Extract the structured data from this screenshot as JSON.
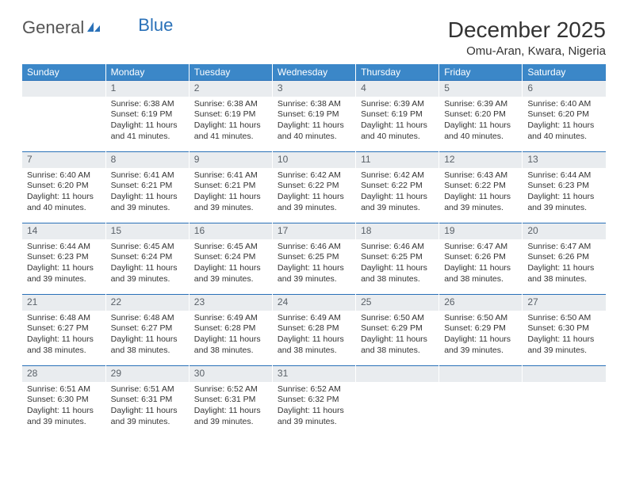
{
  "logo": {
    "text1": "General",
    "text2": "Blue"
  },
  "title": "December 2025",
  "location": "Omu-Aran, Kwara, Nigeria",
  "colors": {
    "header_bg": "#3b87c8",
    "daynum_bg": "#e9ecef",
    "row_divider": "#2a71b8",
    "text": "#333333"
  },
  "weekday_labels": [
    "Sunday",
    "Monday",
    "Tuesday",
    "Wednesday",
    "Thursday",
    "Friday",
    "Saturday"
  ],
  "weeks": [
    [
      {
        "n": "",
        "sr": "",
        "ss": "",
        "dl": ""
      },
      {
        "n": "1",
        "sr": "Sunrise: 6:38 AM",
        "ss": "Sunset: 6:19 PM",
        "dl": "Daylight: 11 hours and 41 minutes."
      },
      {
        "n": "2",
        "sr": "Sunrise: 6:38 AM",
        "ss": "Sunset: 6:19 PM",
        "dl": "Daylight: 11 hours and 41 minutes."
      },
      {
        "n": "3",
        "sr": "Sunrise: 6:38 AM",
        "ss": "Sunset: 6:19 PM",
        "dl": "Daylight: 11 hours and 40 minutes."
      },
      {
        "n": "4",
        "sr": "Sunrise: 6:39 AM",
        "ss": "Sunset: 6:19 PM",
        "dl": "Daylight: 11 hours and 40 minutes."
      },
      {
        "n": "5",
        "sr": "Sunrise: 6:39 AM",
        "ss": "Sunset: 6:20 PM",
        "dl": "Daylight: 11 hours and 40 minutes."
      },
      {
        "n": "6",
        "sr": "Sunrise: 6:40 AM",
        "ss": "Sunset: 6:20 PM",
        "dl": "Daylight: 11 hours and 40 minutes."
      }
    ],
    [
      {
        "n": "7",
        "sr": "Sunrise: 6:40 AM",
        "ss": "Sunset: 6:20 PM",
        "dl": "Daylight: 11 hours and 40 minutes."
      },
      {
        "n": "8",
        "sr": "Sunrise: 6:41 AM",
        "ss": "Sunset: 6:21 PM",
        "dl": "Daylight: 11 hours and 39 minutes."
      },
      {
        "n": "9",
        "sr": "Sunrise: 6:41 AM",
        "ss": "Sunset: 6:21 PM",
        "dl": "Daylight: 11 hours and 39 minutes."
      },
      {
        "n": "10",
        "sr": "Sunrise: 6:42 AM",
        "ss": "Sunset: 6:22 PM",
        "dl": "Daylight: 11 hours and 39 minutes."
      },
      {
        "n": "11",
        "sr": "Sunrise: 6:42 AM",
        "ss": "Sunset: 6:22 PM",
        "dl": "Daylight: 11 hours and 39 minutes."
      },
      {
        "n": "12",
        "sr": "Sunrise: 6:43 AM",
        "ss": "Sunset: 6:22 PM",
        "dl": "Daylight: 11 hours and 39 minutes."
      },
      {
        "n": "13",
        "sr": "Sunrise: 6:44 AM",
        "ss": "Sunset: 6:23 PM",
        "dl": "Daylight: 11 hours and 39 minutes."
      }
    ],
    [
      {
        "n": "14",
        "sr": "Sunrise: 6:44 AM",
        "ss": "Sunset: 6:23 PM",
        "dl": "Daylight: 11 hours and 39 minutes."
      },
      {
        "n": "15",
        "sr": "Sunrise: 6:45 AM",
        "ss": "Sunset: 6:24 PM",
        "dl": "Daylight: 11 hours and 39 minutes."
      },
      {
        "n": "16",
        "sr": "Sunrise: 6:45 AM",
        "ss": "Sunset: 6:24 PM",
        "dl": "Daylight: 11 hours and 39 minutes."
      },
      {
        "n": "17",
        "sr": "Sunrise: 6:46 AM",
        "ss": "Sunset: 6:25 PM",
        "dl": "Daylight: 11 hours and 39 minutes."
      },
      {
        "n": "18",
        "sr": "Sunrise: 6:46 AM",
        "ss": "Sunset: 6:25 PM",
        "dl": "Daylight: 11 hours and 38 minutes."
      },
      {
        "n": "19",
        "sr": "Sunrise: 6:47 AM",
        "ss": "Sunset: 6:26 PM",
        "dl": "Daylight: 11 hours and 38 minutes."
      },
      {
        "n": "20",
        "sr": "Sunrise: 6:47 AM",
        "ss": "Sunset: 6:26 PM",
        "dl": "Daylight: 11 hours and 38 minutes."
      }
    ],
    [
      {
        "n": "21",
        "sr": "Sunrise: 6:48 AM",
        "ss": "Sunset: 6:27 PM",
        "dl": "Daylight: 11 hours and 38 minutes."
      },
      {
        "n": "22",
        "sr": "Sunrise: 6:48 AM",
        "ss": "Sunset: 6:27 PM",
        "dl": "Daylight: 11 hours and 38 minutes."
      },
      {
        "n": "23",
        "sr": "Sunrise: 6:49 AM",
        "ss": "Sunset: 6:28 PM",
        "dl": "Daylight: 11 hours and 38 minutes."
      },
      {
        "n": "24",
        "sr": "Sunrise: 6:49 AM",
        "ss": "Sunset: 6:28 PM",
        "dl": "Daylight: 11 hours and 38 minutes."
      },
      {
        "n": "25",
        "sr": "Sunrise: 6:50 AM",
        "ss": "Sunset: 6:29 PM",
        "dl": "Daylight: 11 hours and 38 minutes."
      },
      {
        "n": "26",
        "sr": "Sunrise: 6:50 AM",
        "ss": "Sunset: 6:29 PM",
        "dl": "Daylight: 11 hours and 39 minutes."
      },
      {
        "n": "27",
        "sr": "Sunrise: 6:50 AM",
        "ss": "Sunset: 6:30 PM",
        "dl": "Daylight: 11 hours and 39 minutes."
      }
    ],
    [
      {
        "n": "28",
        "sr": "Sunrise: 6:51 AM",
        "ss": "Sunset: 6:30 PM",
        "dl": "Daylight: 11 hours and 39 minutes."
      },
      {
        "n": "29",
        "sr": "Sunrise: 6:51 AM",
        "ss": "Sunset: 6:31 PM",
        "dl": "Daylight: 11 hours and 39 minutes."
      },
      {
        "n": "30",
        "sr": "Sunrise: 6:52 AM",
        "ss": "Sunset: 6:31 PM",
        "dl": "Daylight: 11 hours and 39 minutes."
      },
      {
        "n": "31",
        "sr": "Sunrise: 6:52 AM",
        "ss": "Sunset: 6:32 PM",
        "dl": "Daylight: 11 hours and 39 minutes."
      },
      {
        "n": "",
        "sr": "",
        "ss": "",
        "dl": ""
      },
      {
        "n": "",
        "sr": "",
        "ss": "",
        "dl": ""
      },
      {
        "n": "",
        "sr": "",
        "ss": "",
        "dl": ""
      }
    ]
  ]
}
